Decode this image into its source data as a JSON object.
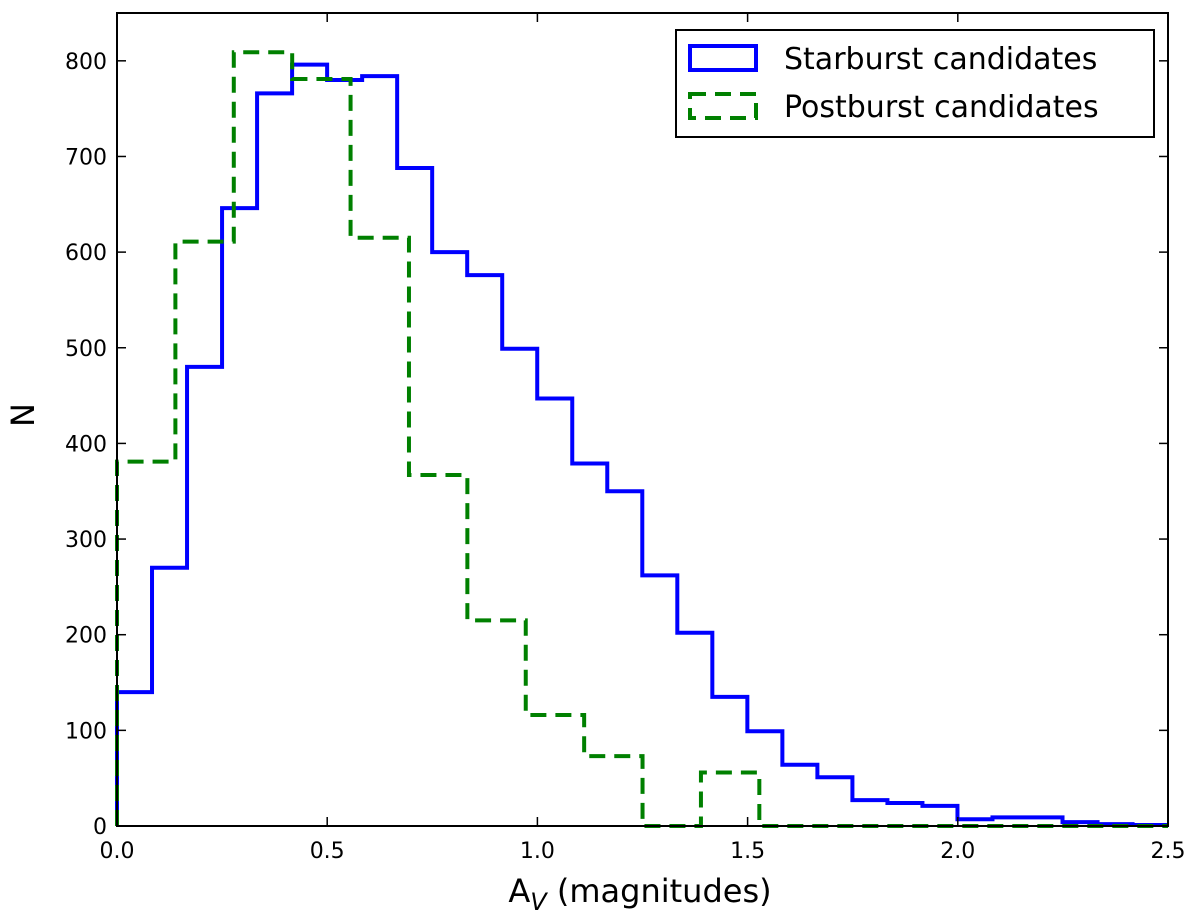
{
  "chart_data": {
    "type": "histogram-step",
    "xlabel": {
      "main": "A",
      "subscript": "V",
      "rest": " (magnitudes)"
    },
    "ylabel": "N",
    "xlim": [
      0.0,
      2.5
    ],
    "ylim": [
      0,
      850
    ],
    "x_ticks": [
      "0.0",
      "0.5",
      "1.0",
      "1.5",
      "2.0",
      "2.5"
    ],
    "x_tick_values": [
      0.0,
      0.5,
      1.0,
      1.5,
      2.0,
      2.5
    ],
    "y_ticks": [
      "0",
      "100",
      "200",
      "300",
      "400",
      "500",
      "600",
      "700",
      "800"
    ],
    "y_tick_values": [
      0,
      100,
      200,
      300,
      400,
      500,
      600,
      700,
      800
    ],
    "grid": false,
    "legend_position": "top-right",
    "series": [
      {
        "name": "Starburst candidates",
        "color": "#0000ff",
        "style": "solid",
        "bin_width": 0.0833,
        "x_start": 0.0,
        "values": [
          140,
          270,
          480,
          646,
          766,
          796,
          780,
          784,
          688,
          600,
          576,
          499,
          447,
          379,
          350,
          262,
          202,
          135,
          99,
          64,
          51,
          27,
          24,
          21,
          7,
          9,
          9,
          4,
          2,
          1
        ]
      },
      {
        "name": "Postburst candidates",
        "color": "#008000",
        "style": "dashed",
        "bin_width": 0.1389,
        "x_start": 0.0,
        "values": [
          381,
          611,
          809,
          781,
          615,
          367,
          215,
          116,
          73,
          0,
          56,
          0,
          0,
          0,
          0,
          0,
          0,
          0
        ]
      }
    ]
  }
}
